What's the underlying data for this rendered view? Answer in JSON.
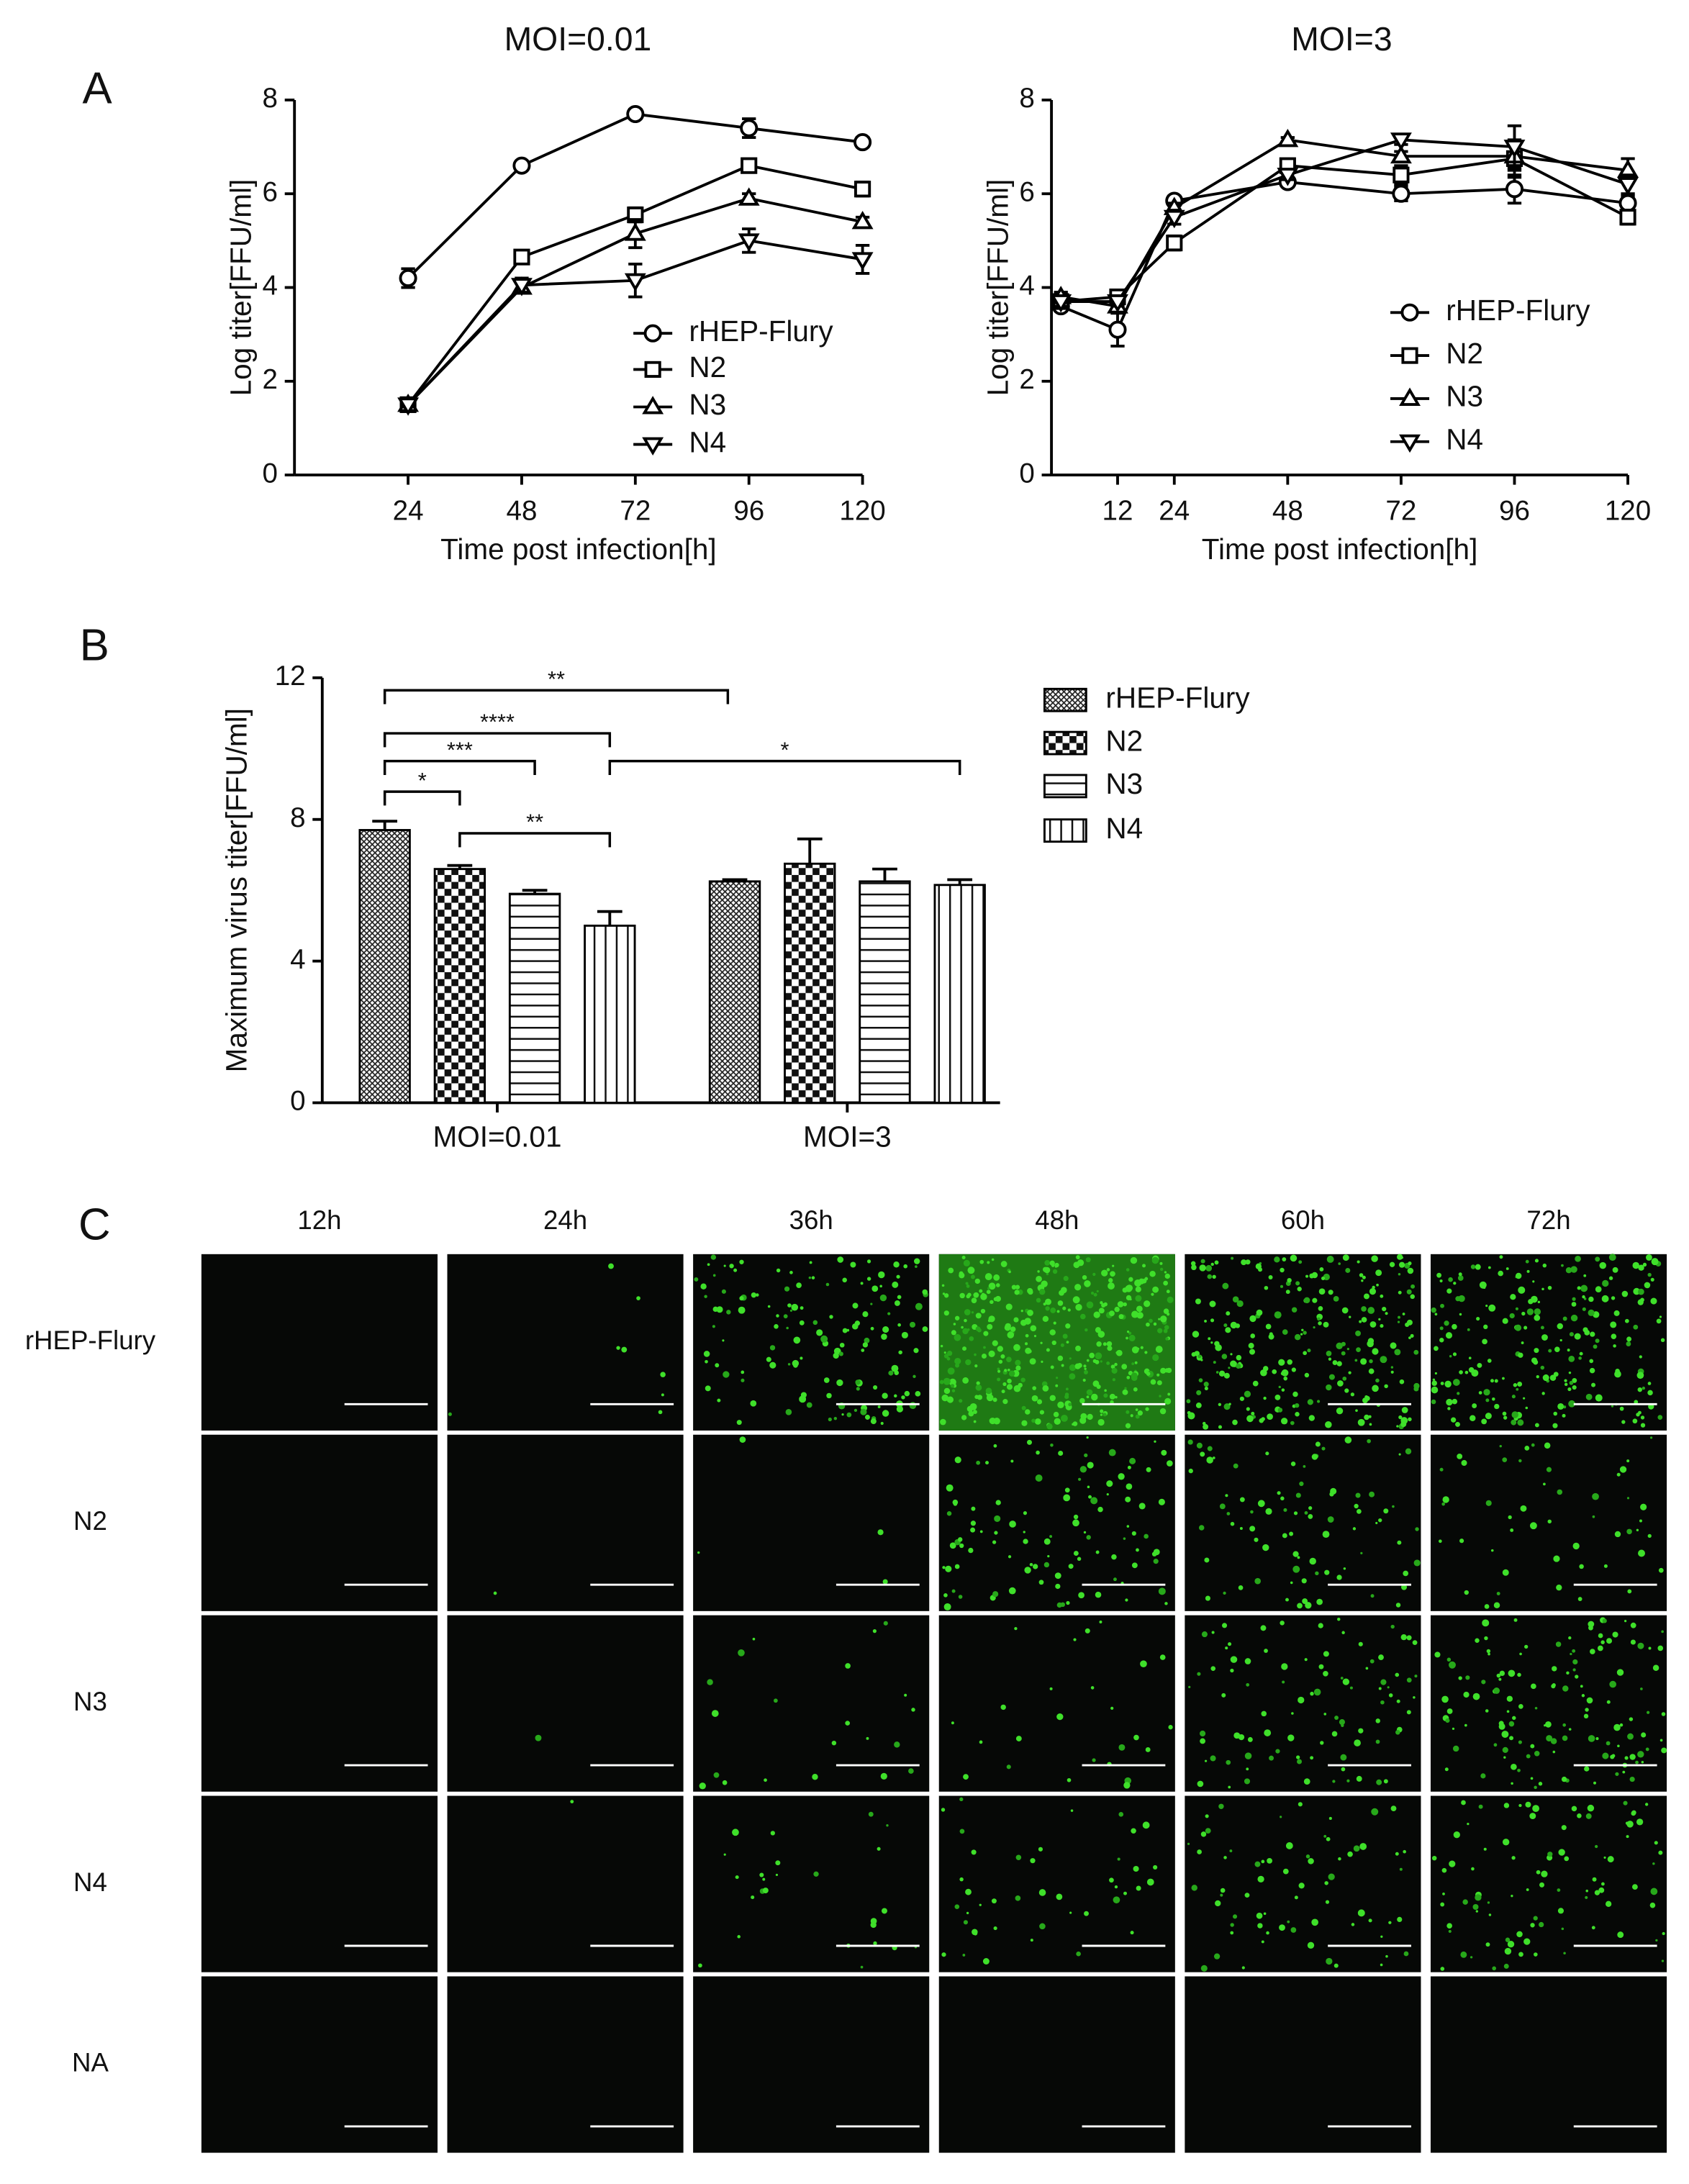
{
  "panel_labels": [
    "A",
    "B",
    "C"
  ],
  "chart_data": [
    {
      "type": "line",
      "title": "MOI=0.01",
      "x_label": "Time post infection[h]",
      "y_label": "Log titer[FFU/ml]",
      "x": [
        24,
        48,
        72,
        96,
        120
      ],
      "xlim": [
        0,
        120
      ],
      "xticks": [
        24,
        48,
        72,
        96,
        120
      ],
      "ylim": [
        0,
        8
      ],
      "yticks": [
        0,
        2,
        4,
        6,
        8
      ],
      "legend": "lower right",
      "series": [
        {
          "name": "rHEP-Flury",
          "color": "#000000",
          "marker": "circle",
          "values": [
            4.2,
            6.6,
            7.7,
            7.4,
            7.1
          ],
          "errors": [
            0.2,
            0.05,
            0.1,
            0.2,
            0.1
          ]
        },
        {
          "name": "N2",
          "color": "#000000",
          "marker": "square",
          "values": [
            1.5,
            4.65,
            5.55,
            6.6,
            6.1
          ],
          "errors": [
            0.05,
            0.1,
            0.15,
            0.1,
            0.15
          ]
        },
        {
          "name": "N3",
          "color": "#000000",
          "marker": "triangle-up",
          "values": [
            1.5,
            4.0,
            5.15,
            5.9,
            5.4
          ],
          "errors": [
            0.05,
            0.1,
            0.3,
            0.1,
            0.1
          ]
        },
        {
          "name": "N4",
          "color": "#000000",
          "marker": "triangle-down",
          "values": [
            1.5,
            4.05,
            4.15,
            5.0,
            4.6
          ],
          "errors": [
            0.05,
            0.15,
            0.35,
            0.25,
            0.3
          ]
        }
      ]
    },
    {
      "type": "line",
      "title": "MOI=3",
      "x_label": "Time post infection[h]",
      "y_label": "Log titer[FFU/ml]",
      "x": [
        0,
        12,
        24,
        48,
        72,
        96,
        120
      ],
      "xlim": [
        -2,
        120
      ],
      "xticks": [
        12,
        24,
        48,
        72,
        96,
        120
      ],
      "ylim": [
        0,
        8
      ],
      "yticks": [
        0,
        2,
        4,
        6,
        8
      ],
      "legend": "lower right",
      "series": [
        {
          "name": "rHEP-Flury",
          "color": "#000000",
          "marker": "circle",
          "values": [
            3.6,
            3.1,
            5.85,
            6.25,
            6.0,
            6.1,
            5.8
          ],
          "errors": [
            0.1,
            0.35,
            0.1,
            0.1,
            0.15,
            0.3,
            0.15
          ]
        },
        {
          "name": "N2",
          "color": "#000000",
          "marker": "square",
          "values": [
            3.7,
            3.8,
            4.95,
            6.6,
            6.4,
            6.75,
            5.5
          ],
          "errors": [
            0.1,
            0.1,
            0.15,
            0.1,
            0.2,
            0.4,
            0.15
          ]
        },
        {
          "name": "N3",
          "color": "#000000",
          "marker": "triangle-up",
          "values": [
            3.8,
            3.6,
            5.7,
            7.15,
            6.8,
            6.8,
            6.5
          ],
          "errors": [
            0.1,
            0.1,
            0.1,
            0.05,
            0.1,
            0.3,
            0.25
          ]
        },
        {
          "name": "N4",
          "color": "#000000",
          "marker": "triangle-down",
          "values": [
            3.7,
            3.7,
            5.5,
            6.4,
            7.15,
            7.0,
            6.2
          ],
          "errors": [
            0.1,
            0.1,
            0.15,
            0.1,
            0.1,
            0.45,
            0.2
          ]
        }
      ]
    },
    {
      "type": "bar",
      "y_label": "Maximum virus titer[FFU/ml]",
      "categories": [
        "MOI=0.01",
        "MOI=3"
      ],
      "ylim": [
        0,
        12
      ],
      "yticks": [
        0,
        4,
        8,
        12
      ],
      "legend": "upper right",
      "annotations": [
        "*",
        "***",
        "****",
        "**",
        "**",
        "*"
      ],
      "series": [
        {
          "name": "rHEP-Flury",
          "color": "#000000",
          "pattern": "crosshatch",
          "values": [
            7.7,
            6.25
          ],
          "errors": [
            0.25,
            0.05
          ]
        },
        {
          "name": "N2",
          "color": "#000000",
          "pattern": "checker",
          "values": [
            6.6,
            6.75
          ],
          "errors": [
            0.1,
            0.7
          ]
        },
        {
          "name": "N3",
          "color": "#000000",
          "pattern": "horizontal",
          "values": [
            5.9,
            6.25
          ],
          "errors": [
            0.1,
            0.35
          ]
        },
        {
          "name": "N4",
          "color": "#000000",
          "pattern": "vertical",
          "values": [
            5.0,
            6.15
          ],
          "errors": [
            0.4,
            0.15
          ]
        }
      ]
    }
  ],
  "image_grid": {
    "columns": [
      "12h",
      "24h",
      "36h",
      "48h",
      "60h",
      "72h"
    ],
    "rows": [
      "rHEP-Flury",
      "N2",
      "N3",
      "N4",
      "NA"
    ]
  }
}
